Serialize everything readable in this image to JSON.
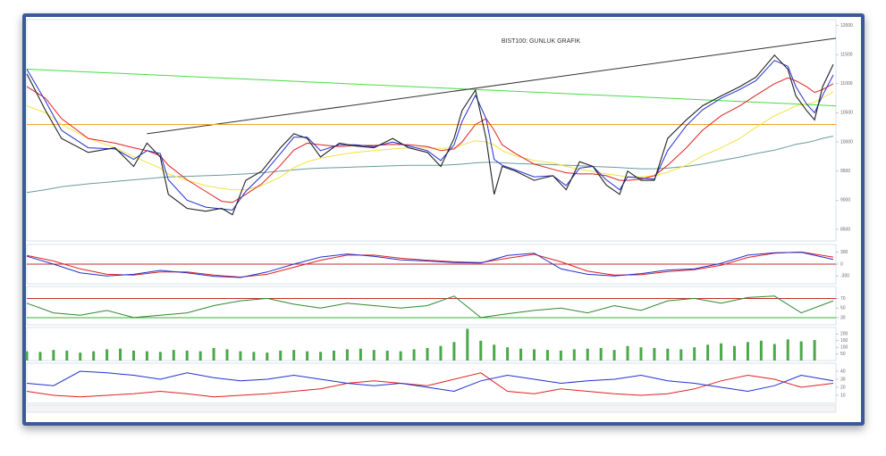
{
  "chart_data": [
    {
      "type": "line",
      "title": "BIST100: GUNLUK GRAFIK",
      "x": [
        0,
        7,
        13,
        23,
        33,
        40,
        45,
        50,
        53,
        60,
        67,
        73,
        77,
        82,
        88,
        95,
        100,
        105,
        110,
        117,
        123,
        130,
        137,
        143,
        150,
        155,
        160,
        163,
        168,
        172,
        175,
        178,
        183,
        190,
        197,
        202,
        207,
        212,
        217,
        222,
        225,
        230,
        235,
        240,
        247,
        253,
        260,
        267,
        273,
        280,
        285,
        288,
        292,
        295,
        298,
        302
      ],
      "xlim": [
        0,
        303
      ],
      "ylim": [
        8300,
        12100
      ],
      "yticks": [
        8500,
        9000,
        9500,
        10000,
        10500,
        11000,
        11500,
        12000
      ],
      "series": [
        {
          "color": "#6a9a9a",
          "values": [
            9130,
            9180,
            9230,
            9280,
            9320,
            9350,
            9370,
            9390,
            9400,
            9410,
            9420,
            9430,
            9440,
            9450,
            9470,
            9500,
            9520,
            9540,
            9550,
            9560,
            9570,
            9580,
            9590,
            9600,
            9600,
            9600,
            9610,
            9620,
            9640,
            9650,
            9650,
            9640,
            9630,
            9620,
            9610,
            9600,
            9590,
            9580,
            9570,
            9560,
            9550,
            9540,
            9540,
            9550,
            9580,
            9620,
            9680,
            9740,
            9800,
            9860,
            9920,
            9960,
            9990,
            10020,
            10060,
            10100
          ]
        },
        {
          "color": "#f2e23a",
          "values": [
            10620,
            10500,
            10300,
            10060,
            9900,
            9750,
            9650,
            9550,
            9450,
            9340,
            9250,
            9200,
            9180,
            9180,
            9250,
            9400,
            9560,
            9660,
            9720,
            9780,
            9820,
            9850,
            9880,
            9900,
            9900,
            9890,
            9900,
            9950,
            10020,
            10000,
            9950,
            9850,
            9760,
            9680,
            9640,
            9580,
            9530,
            9490,
            9450,
            9420,
            9400,
            9400,
            9420,
            9480,
            9600,
            9760,
            9900,
            10060,
            10250,
            10450,
            10550,
            10620,
            10650,
            10680,
            10760,
            10860
          ]
        },
        {
          "color": "#e02020",
          "values": [
            10950,
            10750,
            10400,
            10060,
            9980,
            9900,
            9850,
            9760,
            9600,
            9350,
            9150,
            8980,
            8960,
            9100,
            9280,
            9600,
            9860,
            9980,
            9950,
            9920,
            9940,
            9940,
            9960,
            9950,
            9920,
            9850,
            9880,
            10000,
            10300,
            10400,
            10200,
            9950,
            9800,
            9620,
            9530,
            9470,
            9450,
            9450,
            9420,
            9340,
            9340,
            9360,
            9420,
            9600,
            9900,
            10200,
            10450,
            10620,
            10800,
            11000,
            11100,
            11050,
            10950,
            10850,
            10900,
            11000
          ]
        },
        {
          "color": "#2030d0",
          "values": [
            11250,
            10700,
            10200,
            9900,
            9880,
            9700,
            9850,
            9800,
            9350,
            9000,
            8880,
            8850,
            8830,
            9150,
            9420,
            9800,
            10080,
            10080,
            9850,
            9950,
            9950,
            9920,
            10000,
            9930,
            9850,
            9680,
            9950,
            10350,
            10800,
            10400,
            9700,
            9600,
            9520,
            9400,
            9420,
            9250,
            9550,
            9580,
            9350,
            9180,
            9400,
            9380,
            9360,
            9850,
            10280,
            10550,
            10750,
            10900,
            11050,
            11400,
            11300,
            10950,
            10650,
            10500,
            10800,
            11150
          ]
        },
        {
          "color": "#222222",
          "values": [
            11170,
            10540,
            10060,
            9820,
            9900,
            9580,
            9980,
            9740,
            9100,
            8860,
            8810,
            8860,
            8750,
            9340,
            9500,
            9900,
            10140,
            10060,
            9740,
            9980,
            9930,
            9900,
            10060,
            9900,
            9820,
            9580,
            10060,
            10540,
            10890,
            10060,
            9100,
            9580,
            9500,
            9340,
            9420,
            9180,
            9660,
            9580,
            9260,
            9100,
            9500,
            9340,
            9340,
            10060,
            10380,
            10620,
            10790,
            10950,
            11110,
            11490,
            11250,
            10790,
            10540,
            10380,
            10950,
            11330
          ]
        }
      ],
      "trend_lines": [
        {
          "color": "#44dd44",
          "x": [
            0,
            303
          ],
          "values": [
            11250,
            10620
          ]
        },
        {
          "color": "#333333",
          "x": [
            45,
            303
          ],
          "values": [
            10140,
            11780
          ]
        },
        {
          "color": "#f0a030",
          "x": [
            0,
            303
          ],
          "values": [
            10300,
            10300
          ]
        }
      ]
    },
    {
      "type": "line",
      "x": [
        0,
        10,
        20,
        30,
        40,
        50,
        60,
        70,
        80,
        90,
        100,
        110,
        120,
        130,
        140,
        150,
        160,
        170,
        180,
        190,
        200,
        210,
        220,
        230,
        240,
        250,
        260,
        270,
        280,
        290,
        302
      ],
      "xlim": [
        0,
        303
      ],
      "ylim": [
        -500,
        500
      ],
      "yticks": [
        -300,
        0,
        300
      ],
      "hlines": [
        {
          "value": 0,
          "color": "#c03030"
        }
      ],
      "series": [
        {
          "color": "#e02020",
          "values": [
            220,
            80,
            -120,
            -260,
            -280,
            -200,
            -200,
            -280,
            -330,
            -260,
            -80,
            100,
            230,
            230,
            150,
            100,
            60,
            40,
            150,
            250,
            60,
            -180,
            -280,
            -270,
            -190,
            -140,
            -30,
            170,
            280,
            310,
            180
          ]
        },
        {
          "color": "#2030d0",
          "values": [
            200,
            0,
            -220,
            -300,
            -260,
            -160,
            -220,
            -310,
            -340,
            -200,
            0,
            180,
            260,
            200,
            110,
            80,
            40,
            30,
            220,
            280,
            -120,
            -260,
            -300,
            -240,
            -150,
            -120,
            20,
            230,
            290,
            300,
            120
          ]
        }
      ]
    },
    {
      "type": "line",
      "x": [
        0,
        10,
        20,
        30,
        40,
        50,
        60,
        70,
        80,
        90,
        100,
        110,
        120,
        130,
        140,
        150,
        160,
        170,
        180,
        190,
        200,
        210,
        220,
        230,
        240,
        250,
        260,
        270,
        280,
        290,
        302
      ],
      "xlim": [
        0,
        303
      ],
      "ylim": [
        15,
        95
      ],
      "yticks": [
        30,
        50,
        70
      ],
      "hlines": [
        {
          "value": 70,
          "color": "#c03030"
        },
        {
          "value": 30,
          "color": "#30b030"
        }
      ],
      "series": [
        {
          "color": "#2a8a2a",
          "values": [
            60,
            40,
            35,
            45,
            30,
            35,
            40,
            55,
            65,
            70,
            58,
            50,
            60,
            55,
            50,
            55,
            75,
            30,
            38,
            45,
            50,
            40,
            55,
            45,
            65,
            70,
            60,
            72,
            75,
            40,
            65
          ]
        }
      ]
    },
    {
      "type": "bar",
      "x": [
        0,
        5,
        10,
        15,
        20,
        25,
        30,
        35,
        40,
        45,
        50,
        55,
        60,
        65,
        70,
        75,
        80,
        85,
        90,
        95,
        100,
        105,
        110,
        115,
        120,
        125,
        130,
        135,
        140,
        145,
        150,
        155,
        160,
        165,
        170,
        175,
        180,
        185,
        190,
        195,
        200,
        205,
        210,
        215,
        220,
        225,
        230,
        235,
        240,
        245,
        250,
        255,
        260,
        265,
        270,
        275,
        280,
        285,
        290,
        295
      ],
      "xlim": [
        0,
        303
      ],
      "ylim": [
        0,
        250
      ],
      "yticks": [
        50,
        100,
        150,
        200
      ],
      "color": "#4aa84a",
      "values": [
        70,
        65,
        80,
        75,
        60,
        70,
        85,
        90,
        75,
        70,
        65,
        80,
        75,
        70,
        95,
        85,
        70,
        65,
        60,
        75,
        80,
        70,
        65,
        75,
        85,
        90,
        80,
        75,
        70,
        85,
        95,
        110,
        140,
        240,
        150,
        120,
        100,
        90,
        85,
        80,
        75,
        85,
        90,
        95,
        80,
        110,
        100,
        95,
        90,
        85,
        100,
        120,
        130,
        110,
        140,
        150,
        125,
        160,
        145,
        155
      ]
    },
    {
      "type": "line",
      "x": [
        0,
        10,
        20,
        30,
        40,
        50,
        60,
        70,
        80,
        90,
        100,
        110,
        120,
        130,
        140,
        150,
        160,
        170,
        180,
        190,
        200,
        210,
        220,
        230,
        240,
        250,
        260,
        270,
        280,
        290,
        302
      ],
      "xlim": [
        0,
        303
      ],
      "ylim": [
        0,
        50
      ],
      "yticks": [
        10,
        20,
        30,
        40
      ],
      "series": [
        {
          "color": "#e02020",
          "values": [
            15,
            10,
            8,
            10,
            12,
            15,
            12,
            8,
            10,
            12,
            15,
            18,
            25,
            28,
            25,
            22,
            30,
            38,
            15,
            12,
            18,
            15,
            12,
            10,
            12,
            18,
            28,
            35,
            30,
            20,
            25
          ]
        },
        {
          "color": "#2030d0",
          "values": [
            25,
            22,
            40,
            38,
            35,
            30,
            38,
            32,
            28,
            30,
            35,
            30,
            25,
            22,
            25,
            20,
            15,
            28,
            35,
            30,
            25,
            28,
            30,
            35,
            28,
            25,
            20,
            15,
            22,
            35,
            28
          ]
        }
      ]
    }
  ]
}
